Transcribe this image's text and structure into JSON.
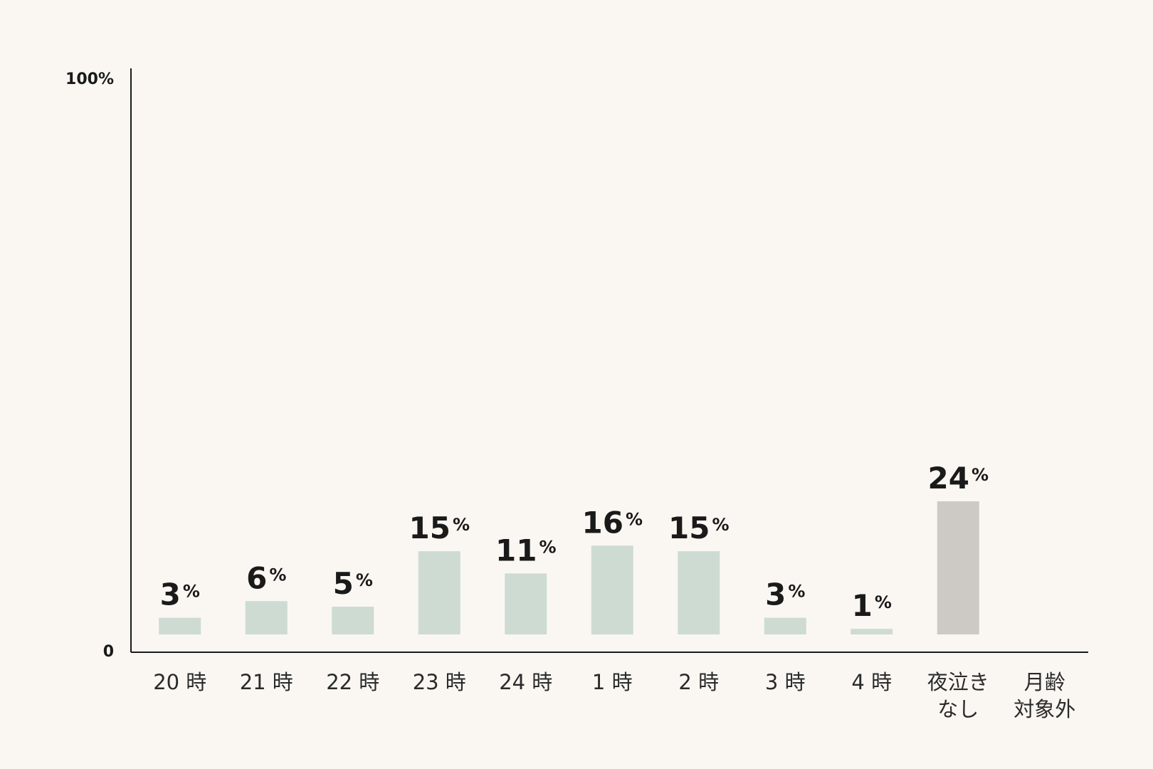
{
  "chart_data": {
    "type": "bar",
    "categories": [
      "20 時",
      "21 時",
      "22 時",
      "23 時",
      "24 時",
      "1 時",
      "2 時",
      "3 時",
      "4 時",
      "夜泣き\nなし",
      "月齢\n対象外"
    ],
    "values": [
      3,
      6,
      5,
      15,
      11,
      16,
      15,
      3,
      1,
      24,
      null
    ],
    "value_labels": [
      "3%",
      "6%",
      "5%",
      "15%",
      "11%",
      "16%",
      "15%",
      "3%",
      "1%",
      "24%",
      null
    ],
    "colors": [
      "#cddbd3",
      "#cddbd3",
      "#cddbd3",
      "#cddbd3",
      "#cddbd3",
      "#cddbd3",
      "#cddbd3",
      "#cddbd3",
      "#cddbd3",
      "#cdcac6",
      "#cddbd3"
    ],
    "ylim": [
      0,
      100
    ],
    "yticks": [
      0,
      {
        "value": 100,
        "label": "100%"
      }
    ]
  }
}
